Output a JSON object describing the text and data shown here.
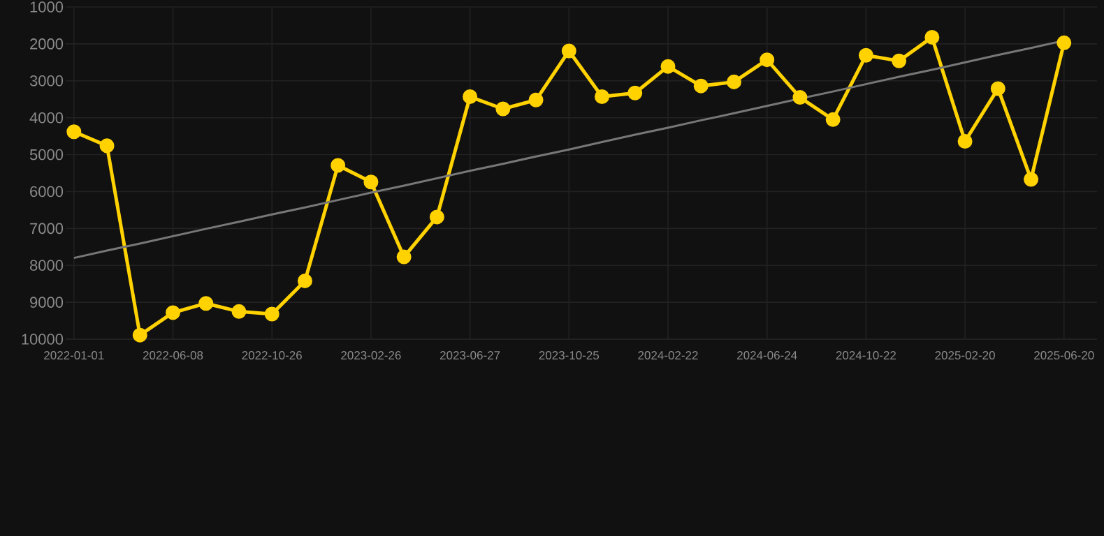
{
  "chart_data": {
    "type": "line",
    "categories": [
      "2022-01-01",
      null,
      null,
      "2022-06-08",
      null,
      null,
      "2022-10-26",
      null,
      null,
      "2023-02-26",
      null,
      null,
      "2023-06-27",
      null,
      null,
      "2023-10-25",
      null,
      null,
      "2024-02-22",
      null,
      null,
      "2024-06-24",
      null,
      null,
      "2024-10-22",
      null,
      null,
      "2025-02-20",
      null,
      null,
      "2025-06-20"
    ],
    "series": [
      {
        "color": "#ffd200",
        "marker": "circle",
        "values": [
          4380,
          4760,
          9890,
          9280,
          9030,
          9250,
          9320,
          8420,
          5290,
          5740,
          7770,
          6690,
          3430,
          3760,
          3520,
          2190,
          3430,
          3330,
          2610,
          3140,
          3030,
          2430,
          3450,
          4050,
          2310,
          2460,
          1820,
          4640,
          3210,
          5670,
          1970
        ]
      },
      {
        "type": "line",
        "color": "#777777",
        "marker": "none",
        "values": [
          7800,
          7600,
          7410,
          7210,
          7010,
          6820,
          6620,
          6430,
          6230,
          6030,
          5840,
          5640,
          5440,
          5250,
          5050,
          4860,
          4660,
          4460,
          4270,
          4070,
          3880,
          3680,
          3480,
          3290,
          3090,
          2890,
          2700,
          2500,
          2300,
          2110,
          1910
        ]
      }
    ],
    "ylim": [
      10000,
      1000
    ],
    "yticks": [
      1000,
      2000,
      3000,
      4000,
      5000,
      6000,
      7000,
      8000,
      9000,
      10000
    ],
    "grid": true
  }
}
